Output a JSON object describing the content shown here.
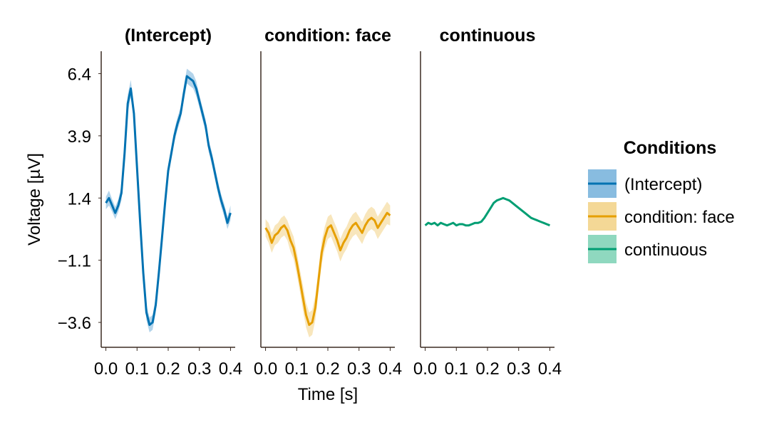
{
  "chart_data": {
    "type": "line",
    "xlabel": "Time [s]",
    "ylabel": "Voltage [µV]",
    "xlim": [
      -0.015,
      0.415
    ],
    "ylim": [
      -4.6,
      7.3
    ],
    "x_ticks": [
      0.0,
      0.1,
      0.2,
      0.3,
      0.4
    ],
    "x_tick_labels": [
      "0.0",
      "0.1",
      "0.2",
      "0.3",
      "0.4"
    ],
    "y_ticks": [
      6.4,
      3.9,
      1.4,
      -1.1,
      -3.6
    ],
    "y_tick_labels": [
      "6.4",
      "3.9",
      "1.4",
      "−1.1",
      "−3.6"
    ],
    "grid": false,
    "legend_placement": "right",
    "legend_title": "Conditions",
    "x": [
      0.0,
      0.01,
      0.02,
      0.03,
      0.04,
      0.05,
      0.06,
      0.07,
      0.08,
      0.09,
      0.1,
      0.11,
      0.12,
      0.13,
      0.14,
      0.15,
      0.16,
      0.17,
      0.18,
      0.19,
      0.2,
      0.21,
      0.22,
      0.23,
      0.24,
      0.25,
      0.26,
      0.27,
      0.28,
      0.29,
      0.3,
      0.31,
      0.32,
      0.33,
      0.34,
      0.35,
      0.36,
      0.37,
      0.38,
      0.39,
      0.4
    ],
    "panels": [
      {
        "title": "(Intercept)",
        "name": "(Intercept)",
        "color": "#0072b2",
        "band_color": "#56a0d3",
        "values": [
          1.2,
          1.4,
          1.1,
          0.8,
          1.1,
          1.6,
          3.2,
          5.2,
          5.8,
          4.8,
          2.6,
          0.4,
          -1.6,
          -3.2,
          -3.7,
          -3.6,
          -2.9,
          -1.6,
          -0.2,
          1.2,
          2.5,
          3.2,
          3.9,
          4.4,
          4.8,
          5.6,
          6.3,
          6.2,
          6.1,
          5.8,
          5.3,
          4.8,
          4.3,
          3.5,
          3.0,
          2.4,
          1.8,
          1.3,
          0.9,
          0.4,
          0.8
        ],
        "band_halfwidth": [
          0.25,
          0.3,
          0.25,
          0.25,
          0.25,
          0.3,
          0.3,
          0.35,
          0.35,
          0.3,
          0.3,
          0.3,
          0.3,
          0.3,
          0.3,
          0.3,
          0.3,
          0.3,
          0.3,
          0.25,
          0.25,
          0.25,
          0.25,
          0.25,
          0.25,
          0.3,
          0.3,
          0.3,
          0.3,
          0.3,
          0.25,
          0.25,
          0.25,
          0.25,
          0.25,
          0.25,
          0.25,
          0.25,
          0.25,
          0.25,
          0.3
        ]
      },
      {
        "title": "condition: face",
        "name": "condition: face",
        "color": "#e69f00",
        "band_color": "#f0c86a",
        "values": [
          0.2,
          0.0,
          -0.4,
          -0.1,
          0.0,
          0.2,
          0.3,
          0.1,
          -0.3,
          -0.6,
          -1.2,
          -1.9,
          -2.6,
          -3.3,
          -3.7,
          -3.6,
          -3.0,
          -1.9,
          -0.8,
          -0.2,
          0.2,
          0.3,
          0.0,
          -0.3,
          -0.7,
          -0.4,
          -0.2,
          0.1,
          0.3,
          0.4,
          0.2,
          0.0,
          0.3,
          0.5,
          0.6,
          0.5,
          0.2,
          0.4,
          0.6,
          0.8,
          0.7
        ],
        "band_halfwidth": [
          0.35,
          0.4,
          0.4,
          0.4,
          0.4,
          0.4,
          0.4,
          0.4,
          0.45,
          0.45,
          0.45,
          0.45,
          0.5,
          0.5,
          0.5,
          0.5,
          0.5,
          0.45,
          0.45,
          0.45,
          0.45,
          0.45,
          0.45,
          0.45,
          0.45,
          0.45,
          0.45,
          0.45,
          0.45,
          0.45,
          0.45,
          0.45,
          0.45,
          0.45,
          0.45,
          0.45,
          0.45,
          0.45,
          0.45,
          0.45,
          0.4
        ]
      },
      {
        "title": "continuous",
        "name": "continuous",
        "color": "#009e73",
        "band_color": "#5fc7a4",
        "values": [
          0.3,
          0.4,
          0.35,
          0.4,
          0.3,
          0.4,
          0.35,
          0.3,
          0.35,
          0.4,
          0.3,
          0.35,
          0.35,
          0.3,
          0.3,
          0.35,
          0.4,
          0.4,
          0.45,
          0.6,
          0.8,
          1.0,
          1.2,
          1.3,
          1.35,
          1.4,
          1.35,
          1.3,
          1.2,
          1.1,
          1.0,
          0.9,
          0.8,
          0.7,
          0.6,
          0.55,
          0.5,
          0.45,
          0.4,
          0.35,
          0.3
        ],
        "band_halfwidth": [
          0.03,
          0.03,
          0.03,
          0.03,
          0.03,
          0.03,
          0.03,
          0.03,
          0.03,
          0.03,
          0.03,
          0.03,
          0.03,
          0.03,
          0.03,
          0.03,
          0.03,
          0.03,
          0.03,
          0.03,
          0.03,
          0.03,
          0.03,
          0.03,
          0.03,
          0.03,
          0.03,
          0.03,
          0.03,
          0.03,
          0.03,
          0.03,
          0.03,
          0.03,
          0.03,
          0.03,
          0.03,
          0.03,
          0.03,
          0.03,
          0.03
        ]
      }
    ]
  }
}
